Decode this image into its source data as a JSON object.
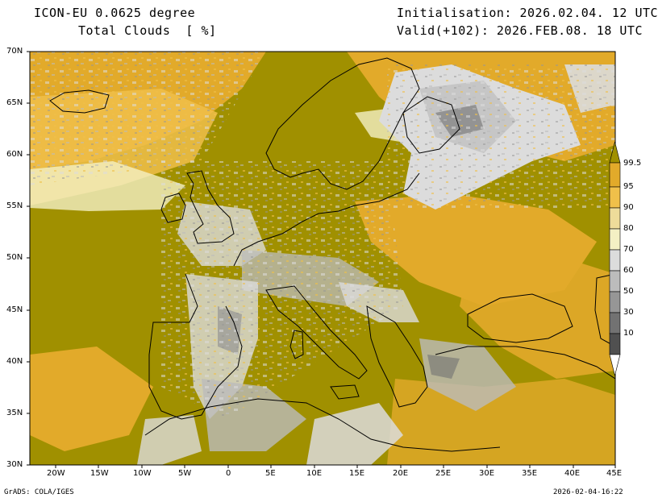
{
  "header": {
    "model": "ICON-EU 0.0625 degree",
    "variable": "Total Clouds  [ %]",
    "init": "Initialisation: 2026.02.04. 12 UTC",
    "valid": "Valid(+102): 2026.FEB.08. 18 UTC"
  },
  "axes": {
    "lat_labels": [
      "70N",
      "65N",
      "60N",
      "55N",
      "50N",
      "45N",
      "40N",
      "35N",
      "30N"
    ],
    "lon_labels": [
      "20W",
      "15W",
      "10W",
      "5W",
      "0",
      "5E",
      "10E",
      "15E",
      "20E",
      "25E",
      "30E",
      "35E",
      "40E",
      "45E"
    ]
  },
  "colorbar": {
    "levels": [
      "99.5",
      "95",
      "90",
      "80",
      "70",
      "60",
      "50",
      "30",
      "10"
    ],
    "colors": [
      "#a09000",
      "#e2aa2a",
      "#f0c04a",
      "#eedc9a",
      "#f4f0c4",
      "#dcdcdc",
      "#bcbcbc",
      "#969696",
      "#727272",
      "#505050"
    ]
  },
  "footer": {
    "left": "GrADS: COLA/IGES",
    "right": "2026-02-04-16:22"
  }
}
